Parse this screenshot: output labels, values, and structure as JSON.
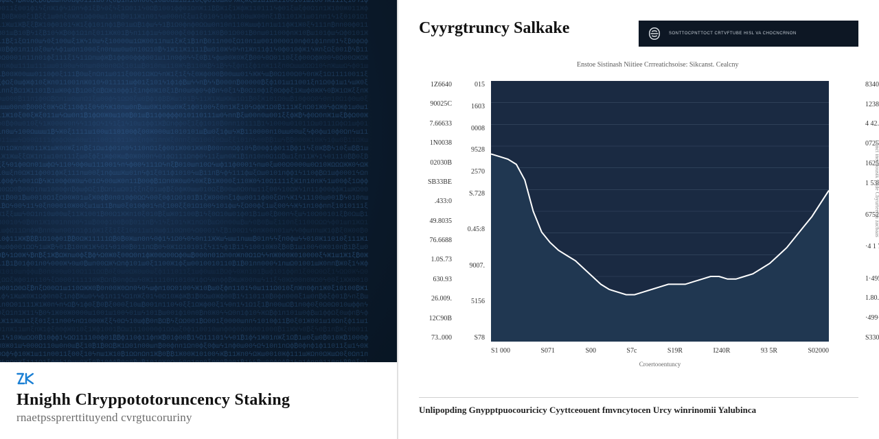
{
  "left": {
    "logo_text": "2K",
    "logo_color": "#1a7fd4",
    "title": "Hnighh Clryppototoruncency Staking",
    "subtitle": "rnaetpssprerttituyend cvrgtucoruriny",
    "hero_bg_gradient": [
      "#1e3a5f",
      "#0d1f35",
      "#0a1828",
      "#071420"
    ],
    "glyph_color": "#3a6ea5"
  },
  "brand_bar": {
    "bg": "#0d1724",
    "text": "SONTTOCPNTTOCT CRTVFTUBE HISL VA CHOCNCRNON",
    "icon_color": "#d8dde2"
  },
  "chart": {
    "type": "area",
    "title": "Cyyrgtruncy Salkake",
    "subtitle": "Enstoe Sistinash Niitiee Crrreatichsoise: Sikcanst. Cealcny",
    "plot_bg": "#1a2a42",
    "area_fill": "#203751",
    "line_color": "#ffffff",
    "line_width": 2,
    "grid_color": "#3a4d66",
    "x_ticks": [
      "S1 000",
      "S071",
      "S00",
      "S7c",
      "S19R",
      "I240R",
      "93 5R",
      "S02000"
    ],
    "x_label": "Croertooentuncy",
    "y_left_outer": [
      "1Z6640",
      "90025C",
      "7.66633",
      "1N0038",
      "02030B",
      "SB33BE",
      ".433:0",
      "49.8035",
      "76.6688",
      "1.0S.73",
      "630.93",
      "26.009.",
      "12C90B",
      "73..000"
    ],
    "y_left_inner": [
      "015",
      "1603",
      "0008",
      "9528",
      "2570",
      "S.728",
      "",
      "0.45:8",
      "",
      "9007.",
      "",
      "5156",
      "",
      "S78"
    ],
    "y_right": [
      "8340",
      "1238",
      "4 42.5",
      "0725",
      "1625",
      "1 538",
      "",
      "6752",
      "",
      "·4 1 72",
      "",
      "1·4953",
      "1.80.4",
      "·499·.",
      "S330"
    ],
    "series_norm": [
      0.72,
      0.71,
      0.7,
      0.68,
      0.62,
      0.5,
      0.42,
      0.38,
      0.35,
      0.33,
      0.31,
      0.28,
      0.25,
      0.22,
      0.2,
      0.19,
      0.18,
      0.18,
      0.19,
      0.2,
      0.21,
      0.22,
      0.22,
      0.22,
      0.23,
      0.24,
      0.25,
      0.25,
      0.24,
      0.24,
      0.25,
      0.26,
      0.28,
      0.3,
      0.33,
      0.36,
      0.4,
      0.44,
      0.48,
      0.53,
      0.58
    ]
  },
  "side_label": "Lanct inentlousik viide Cbyurteema zacbaas",
  "right_caption": "Unlipopding Gnypptpuocouricicy Cyyttceouent fmvncytocen Urcy winrinomii Yalubinca"
}
